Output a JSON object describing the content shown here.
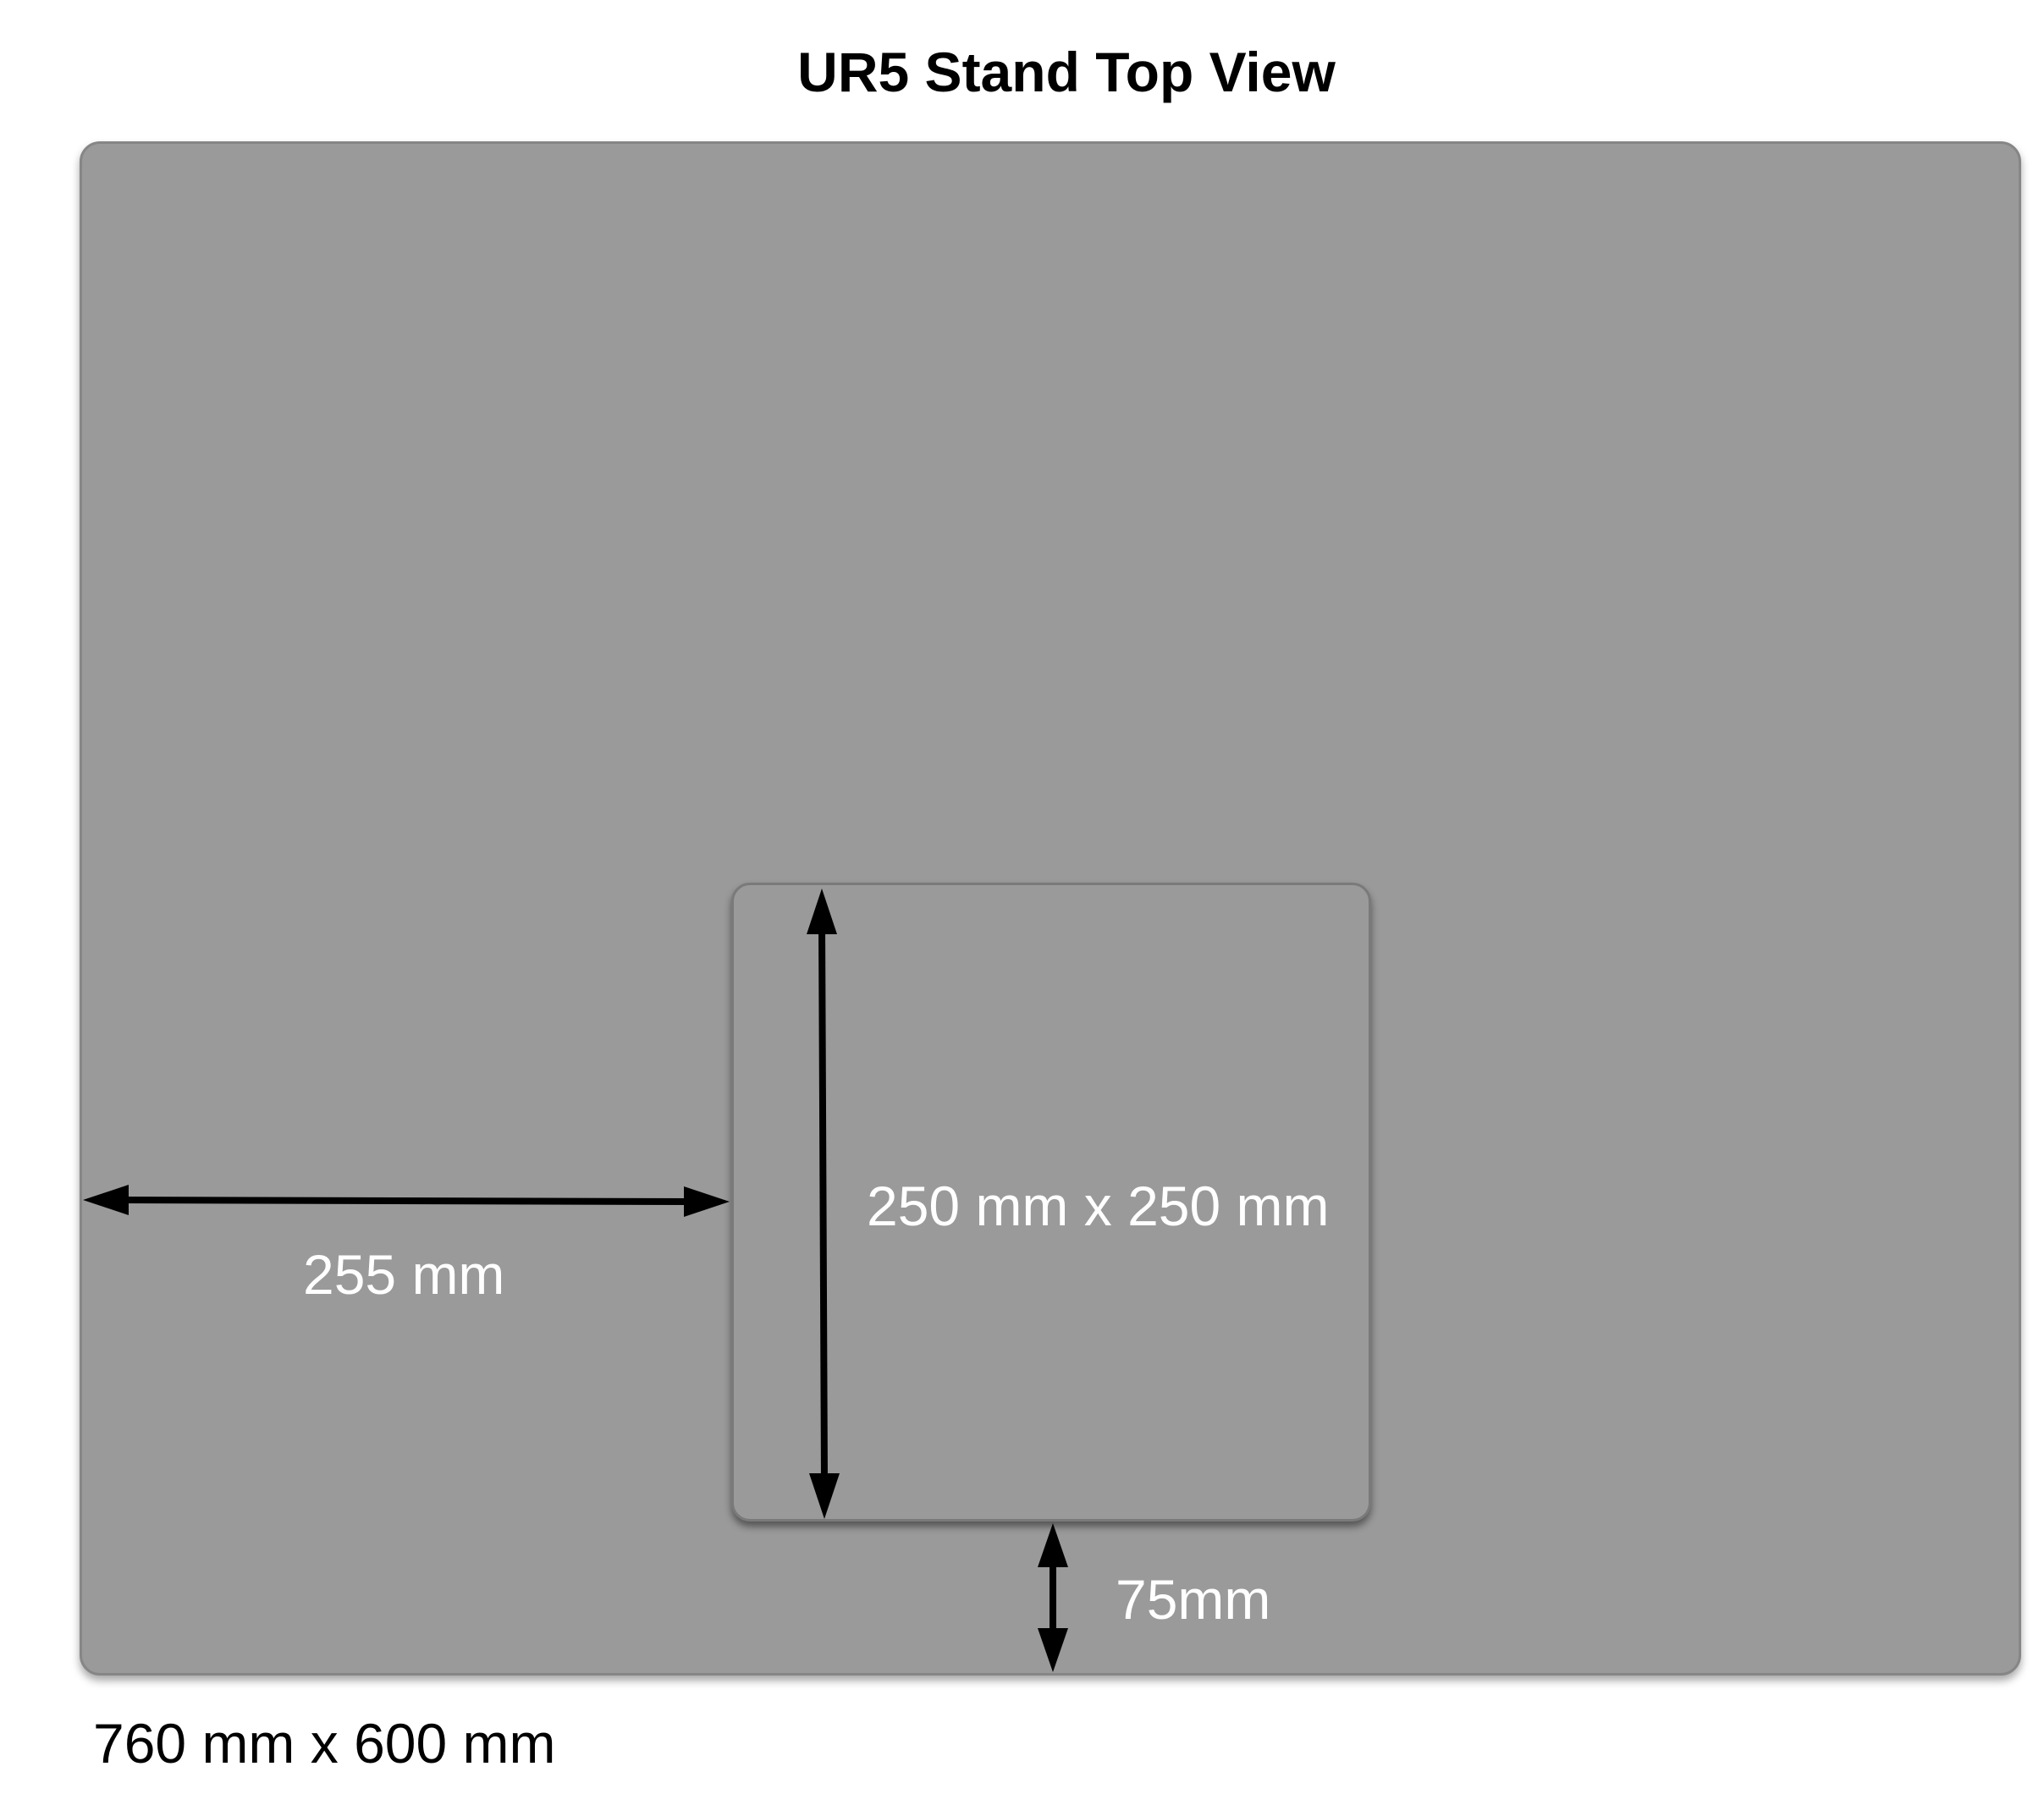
{
  "diagram": {
    "title": "UR5 Stand Top View",
    "plate": {
      "size_label": "760 mm x 600 mm",
      "fill_color": "#9a9a9a"
    },
    "mount": {
      "size_label": "250 mm x 250 mm",
      "fill_color": "#9a9a9a"
    },
    "dimensions": {
      "left_offset_label": "255 mm",
      "bottom_offset_label": "75mm"
    },
    "arrow_color": "#000000"
  }
}
